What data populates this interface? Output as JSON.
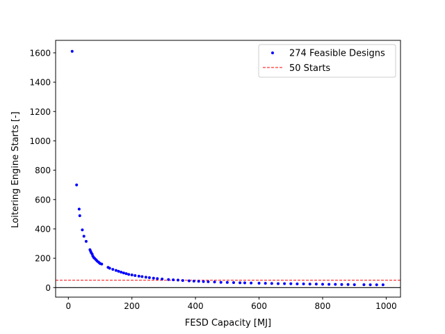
{
  "chart_data": {
    "type": "scatter",
    "xlabel": "FESD Capacity [MJ]",
    "ylabel": "Loitering Engine Starts [-]",
    "xlim": [
      -40,
      1045
    ],
    "ylim": [
      -65,
      1685
    ],
    "xticks": [
      0,
      200,
      400,
      600,
      800,
      1000
    ],
    "yticks": [
      0,
      200,
      400,
      600,
      800,
      1000,
      1200,
      1400,
      1600
    ],
    "grid": false,
    "legend_position": "top-right",
    "series": [
      {
        "name": "274 Feasible Designs",
        "style": "points",
        "color": "#0000ff",
        "x": [
          12,
          26,
          34,
          36,
          44,
          49,
          56,
          68,
          70,
          72,
          75,
          77,
          80,
          83,
          87,
          90,
          94,
          97,
          100,
          105,
          125,
          130,
          140,
          150,
          158,
          166,
          174,
          182,
          190,
          200,
          210,
          222,
          232,
          244,
          255,
          268,
          280,
          295,
          315,
          330,
          345,
          360,
          380,
          395,
          410,
          425,
          440,
          460,
          480,
          500,
          520,
          540,
          555,
          575,
          600,
          620,
          640,
          660,
          680,
          700,
          720,
          740,
          760,
          780,
          800,
          820,
          840,
          860,
          880,
          900,
          930,
          950,
          970,
          990
        ],
        "y": [
          1610,
          700,
          535,
          490,
          393,
          350,
          315,
          258,
          248,
          238,
          228,
          215,
          205,
          198,
          190,
          182,
          175,
          170,
          164,
          160,
          138,
          132,
          124,
          117,
          111,
          105,
          100,
          95,
          90,
          86,
          82,
          78,
          75,
          71,
          68,
          64,
          61,
          58,
          55,
          53,
          51,
          48,
          46,
          44,
          43,
          41,
          40,
          38,
          36,
          35,
          34,
          33,
          32,
          31,
          30,
          29,
          28,
          27,
          27,
          26,
          25,
          25,
          24,
          24,
          23,
          22,
          22,
          21,
          21,
          20,
          20,
          19,
          19,
          19
        ]
      },
      {
        "name": "50 Starts",
        "style": "dashed-line",
        "color": "#ff0000",
        "y": 50
      }
    ],
    "reference_line": {
      "y": 0,
      "color": "#000000"
    }
  }
}
